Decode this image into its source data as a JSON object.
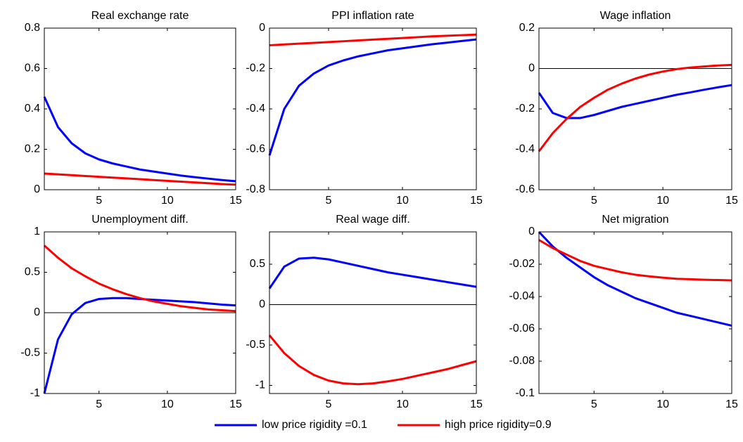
{
  "chart_data": [
    {
      "type": "line",
      "title": "Real exchange rate",
      "x": [
        1,
        2,
        3,
        4,
        5,
        6,
        7,
        8,
        9,
        10,
        11,
        12,
        13,
        14,
        15
      ],
      "xlim": [
        1,
        15
      ],
      "xticks": [
        5,
        10,
        15
      ],
      "ylim": [
        0,
        0.8
      ],
      "yticks": [
        0,
        0.2,
        0.4,
        0.6,
        0.8
      ],
      "zero_line": false,
      "series": [
        {
          "name": "low price rigidity =0.1",
          "color": "#0000ff",
          "values": [
            0.46,
            0.31,
            0.23,
            0.18,
            0.15,
            0.13,
            0.115,
            0.1,
            0.09,
            0.08,
            0.07,
            0.062,
            0.055,
            0.048,
            0.042
          ]
        },
        {
          "name": "high price rigidity=0.9",
          "color": "#ff0000",
          "values": [
            0.08,
            0.076,
            0.072,
            0.068,
            0.064,
            0.06,
            0.056,
            0.052,
            0.048,
            0.044,
            0.04,
            0.036,
            0.032,
            0.028,
            0.025
          ]
        }
      ]
    },
    {
      "type": "line",
      "title": "PPI inflation rate",
      "x": [
        1,
        2,
        3,
        4,
        5,
        6,
        7,
        8,
        9,
        10,
        11,
        12,
        13,
        14,
        15
      ],
      "xlim": [
        1,
        15
      ],
      "xticks": [
        5,
        10,
        15
      ],
      "ylim": [
        -0.8,
        0
      ],
      "yticks": [
        -0.8,
        -0.6,
        -0.4,
        -0.2,
        0
      ],
      "zero_line": false,
      "series": [
        {
          "name": "low price rigidity =0.1",
          "color": "#0000ff",
          "values": [
            -0.63,
            -0.4,
            -0.285,
            -0.225,
            -0.185,
            -0.16,
            -0.14,
            -0.125,
            -0.11,
            -0.1,
            -0.09,
            -0.08,
            -0.072,
            -0.064,
            -0.056
          ]
        },
        {
          "name": "high price rigidity=0.9",
          "color": "#ff0000",
          "values": [
            -0.085,
            -0.081,
            -0.077,
            -0.073,
            -0.069,
            -0.065,
            -0.061,
            -0.057,
            -0.053,
            -0.049,
            -0.045,
            -0.041,
            -0.038,
            -0.035,
            -0.032
          ]
        }
      ]
    },
    {
      "type": "line",
      "title": "Wage inflation",
      "x": [
        1,
        2,
        3,
        4,
        5,
        6,
        7,
        8,
        9,
        10,
        11,
        12,
        13,
        14,
        15
      ],
      "xlim": [
        1,
        15
      ],
      "xticks": [
        5,
        10,
        15
      ],
      "ylim": [
        -0.6,
        0.2
      ],
      "yticks": [
        -0.6,
        -0.4,
        -0.2,
        0,
        0.2
      ],
      "zero_line": true,
      "series": [
        {
          "name": "low price rigidity =0.1",
          "color": "#0000ff",
          "values": [
            -0.12,
            -0.22,
            -0.245,
            -0.245,
            -0.23,
            -0.21,
            -0.19,
            -0.175,
            -0.16,
            -0.145,
            -0.13,
            -0.118,
            -0.105,
            -0.093,
            -0.082
          ]
        },
        {
          "name": "high price rigidity=0.9",
          "color": "#ff0000",
          "values": [
            -0.41,
            -0.32,
            -0.25,
            -0.19,
            -0.145,
            -0.105,
            -0.075,
            -0.05,
            -0.03,
            -0.015,
            -0.003,
            0.005,
            0.01,
            0.015,
            0.018
          ]
        }
      ]
    },
    {
      "type": "line",
      "title": "Unemployment diff.",
      "x": [
        1,
        2,
        3,
        4,
        5,
        6,
        7,
        8,
        9,
        10,
        11,
        12,
        13,
        14,
        15
      ],
      "xlim": [
        1,
        15
      ],
      "xticks": [
        5,
        10,
        15
      ],
      "ylim": [
        -1,
        1
      ],
      "yticks": [
        -1,
        -0.5,
        0,
        0.5,
        1
      ],
      "zero_line": true,
      "series": [
        {
          "name": "low price rigidity =0.1",
          "color": "#0000ff",
          "values": [
            -1,
            -0.33,
            -0.02,
            0.12,
            0.17,
            0.18,
            0.18,
            0.17,
            0.16,
            0.15,
            0.14,
            0.13,
            0.115,
            0.1,
            0.09
          ]
        },
        {
          "name": "high price rigidity=0.9",
          "color": "#ff0000",
          "values": [
            0.83,
            0.68,
            0.55,
            0.45,
            0.36,
            0.29,
            0.23,
            0.18,
            0.14,
            0.11,
            0.08,
            0.06,
            0.04,
            0.03,
            0.02
          ]
        }
      ]
    },
    {
      "type": "line",
      "title": "Real wage diff.",
      "x": [
        1,
        2,
        3,
        4,
        5,
        6,
        7,
        8,
        9,
        10,
        11,
        12,
        13,
        14,
        15
      ],
      "xlim": [
        1,
        15
      ],
      "xticks": [
        5,
        10,
        15
      ],
      "ylim": [
        -1.1,
        0.9
      ],
      "yticks": [
        -1,
        -0.5,
        0,
        0.5
      ],
      "zero_line": true,
      "series": [
        {
          "name": "low price rigidity =0.1",
          "color": "#0000ff",
          "values": [
            0.2,
            0.47,
            0.57,
            0.58,
            0.56,
            0.52,
            0.48,
            0.44,
            0.4,
            0.37,
            0.34,
            0.31,
            0.28,
            0.25,
            0.22
          ]
        },
        {
          "name": "high price rigidity=0.9",
          "color": "#ff0000",
          "values": [
            -0.38,
            -0.6,
            -0.76,
            -0.87,
            -0.94,
            -0.975,
            -0.985,
            -0.975,
            -0.95,
            -0.92,
            -0.88,
            -0.84,
            -0.8,
            -0.75,
            -0.7
          ]
        }
      ]
    },
    {
      "type": "line",
      "title": "Net migration",
      "x": [
        1,
        2,
        3,
        4,
        5,
        6,
        7,
        8,
        9,
        10,
        11,
        12,
        13,
        14,
        15
      ],
      "xlim": [
        1,
        15
      ],
      "xticks": [
        5,
        10,
        15
      ],
      "ylim": [
        -0.1,
        0
      ],
      "yticks": [
        -0.1,
        -0.08,
        -0.06,
        -0.04,
        -0.02,
        0
      ],
      "zero_line": false,
      "series": [
        {
          "name": "low price rigidity =0.1",
          "color": "#0000ff",
          "values": [
            0,
            -0.009,
            -0.016,
            -0.022,
            -0.028,
            -0.033,
            -0.037,
            -0.041,
            -0.044,
            -0.047,
            -0.05,
            -0.052,
            -0.054,
            -0.056,
            -0.058
          ]
        },
        {
          "name": "high price rigidity=0.9",
          "color": "#ff0000",
          "values": [
            -0.005,
            -0.01,
            -0.014,
            -0.018,
            -0.021,
            -0.023,
            -0.025,
            -0.0265,
            -0.0275,
            -0.0283,
            -0.029,
            -0.0293,
            -0.0296,
            -0.0298,
            -0.03
          ]
        }
      ]
    }
  ]
}
